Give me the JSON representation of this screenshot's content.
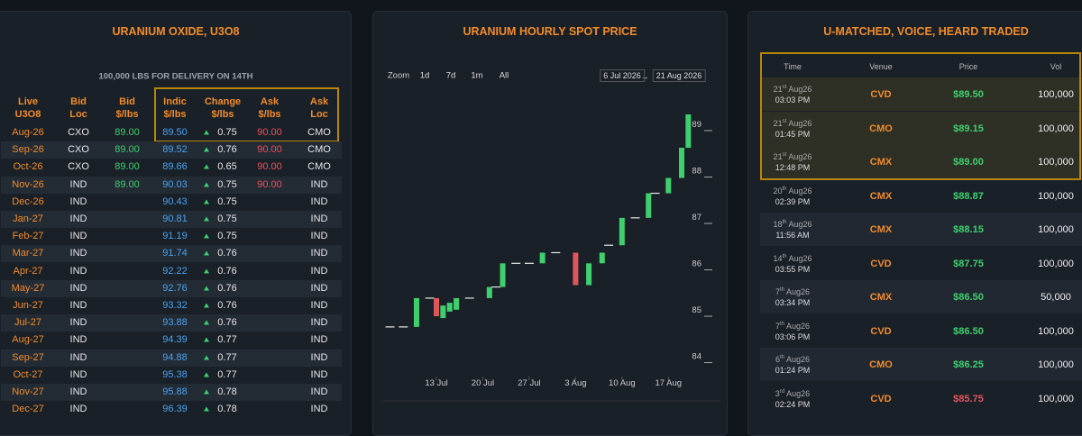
{
  "oxide": {
    "title": "URANIUM OXIDE, U3O8",
    "subtitle": "100,000 LBS FOR DELIVERY ON 14TH",
    "headers": [
      [
        "Live",
        "U3O8"
      ],
      [
        "Bid",
        "Loc"
      ],
      [
        "Bid",
        "$/lbs"
      ],
      [
        "Indic",
        "$/lbs"
      ],
      [
        "Change",
        "$/lbs"
      ],
      [
        "Ask",
        "$/lbs"
      ],
      [
        "Ask",
        "Loc"
      ]
    ],
    "rows": [
      [
        "Aug-26",
        "CXO",
        "89.00",
        "89.50",
        "0.75",
        "90.00",
        "CMO"
      ],
      [
        "Sep-26",
        "CXO",
        "89.00",
        "89.52",
        "0.76",
        "90.00",
        "CMO"
      ],
      [
        "Oct-26",
        "CXO",
        "89.00",
        "89.66",
        "0.65",
        "90.00",
        "CMO"
      ],
      [
        "Nov-26",
        "IND",
        "89.00",
        "90.03",
        "0.75",
        "90.00",
        "IND"
      ],
      [
        "Dec-26",
        "IND",
        null,
        "90.43",
        "0.75",
        null,
        "IND"
      ],
      [
        "Jan-27",
        "IND",
        null,
        "90.81",
        "0.75",
        null,
        "IND"
      ],
      [
        "Feb-27",
        "IND",
        null,
        "91.19",
        "0.75",
        null,
        "IND"
      ],
      [
        "Mar-27",
        "IND",
        null,
        "91.74",
        "0.76",
        null,
        "IND"
      ],
      [
        "Apr-27",
        "IND",
        null,
        "92.22",
        "0.76",
        null,
        "IND"
      ],
      [
        "May-27",
        "IND",
        null,
        "92.76",
        "0.76",
        null,
        "IND"
      ],
      [
        "Jun-27",
        "IND",
        null,
        "93.32",
        "0.76",
        null,
        "IND"
      ],
      [
        "Jul-27",
        "IND",
        null,
        "93.88",
        "0.76",
        null,
        "IND"
      ],
      [
        "Aug-27",
        "IND",
        null,
        "94.39",
        "0.77",
        null,
        "IND"
      ],
      [
        "Sep-27",
        "IND",
        null,
        "94.88",
        "0.77",
        null,
        "IND"
      ],
      [
        "Oct-27",
        "IND",
        null,
        "95.38",
        "0.77",
        null,
        "IND"
      ],
      [
        "Nov-27",
        "IND",
        null,
        "95.88",
        "0.78",
        null,
        "IND"
      ],
      [
        "Dec-27",
        "IND",
        null,
        "96.39",
        "0.78",
        null,
        "IND"
      ]
    ]
  },
  "range_selector": {
    "zoom": "Zoom",
    "buttons": [
      "1d",
      "7d",
      "1m",
      "All"
    ],
    "from": "6 Jul 2026",
    "arrow": "→",
    "to": "21 Aug 2026"
  },
  "chart_data": {
    "type": "candlestick",
    "title": "URANIUM HOURLY SPOT PRICE",
    "x": [
      "2026-07-06",
      "2026-07-08",
      "2026-07-10",
      "2026-07-12",
      "2026-07-13",
      "2026-07-14",
      "2026-07-15",
      "2026-07-16",
      "2026-07-18",
      "2026-07-21",
      "2026-07-22",
      "2026-07-23",
      "2026-07-25",
      "2026-07-27",
      "2026-07-29",
      "2026-07-31",
      "2026-08-03",
      "2026-08-05",
      "2026-08-07",
      "2026-08-08",
      "2026-08-10",
      "2026-08-12",
      "2026-08-14",
      "2026-08-15",
      "2026-08-17",
      "2026-08-19",
      "2026-08-20"
    ],
    "open": [
      84.77,
      84.77,
      84.77,
      85.39,
      85.39,
      84.96,
      85.1,
      85.14,
      85.39,
      85.39,
      85.63,
      85.63,
      86.14,
      86.14,
      86.14,
      86.37,
      86.37,
      85.67,
      86.14,
      86.53,
      86.53,
      87.12,
      87.12,
      87.65,
      87.65,
      87.98,
      88.63
    ],
    "close": [
      84.77,
      84.77,
      85.39,
      85.39,
      85.0,
      85.23,
      85.29,
      85.39,
      85.39,
      85.63,
      85.63,
      86.14,
      86.14,
      86.14,
      86.37,
      86.37,
      85.67,
      86.14,
      86.37,
      86.53,
      87.12,
      87.12,
      87.65,
      87.65,
      87.98,
      88.63,
      89.35
    ],
    "up_color": "#3fcf6e",
    "down_color": "#e0565b",
    "flat_color": "#e8e8e8",
    "xlim": [
      "2026-07-05",
      "2026-08-23"
    ],
    "xticks": [
      {
        "value": "2026-07-13",
        "label": "13 Jul"
      },
      {
        "value": "2026-07-20",
        "label": "20 Jul"
      },
      {
        "value": "2026-07-27",
        "label": "27 Jul"
      },
      {
        "value": "2026-08-03",
        "label": "3 Aug"
      },
      {
        "value": "2026-08-10",
        "label": "10 Aug"
      },
      {
        "value": "2026-08-17",
        "label": "17 Aug"
      }
    ],
    "ylim": [
      83.7,
      90
    ],
    "yticks": [
      84,
      85,
      86,
      87,
      88,
      89
    ]
  },
  "trades": {
    "title": "U-MATCHED, VOICE, HEARD TRADED",
    "headers": [
      "Time",
      "Venue",
      "Price",
      "Vol"
    ],
    "rows": [
      {
        "day": "21",
        "suffix": "st",
        "month": "Aug26",
        "time": "03:03 PM",
        "venue": "CVD",
        "price": "$89.50",
        "vol": "100,000",
        "color": "#3fcf6e"
      },
      {
        "day": "21",
        "suffix": "st",
        "month": "Aug26",
        "time": "01:45 PM",
        "venue": "CMO",
        "price": "$89.15",
        "vol": "100,000",
        "color": "#3fcf6e"
      },
      {
        "day": "21",
        "suffix": "st",
        "month": "Aug26",
        "time": "12:48 PM",
        "venue": "CMX",
        "price": "$89.00",
        "vol": "100,000",
        "color": "#3fcf6e"
      },
      {
        "day": "20",
        "suffix": "th",
        "month": "Aug26",
        "time": "02:39 PM",
        "venue": "CMX",
        "price": "$88.87",
        "vol": "100,000",
        "color": "#3fcf6e"
      },
      {
        "day": "18",
        "suffix": "th",
        "month": "Aug26",
        "time": "11:56 AM",
        "venue": "CMX",
        "price": "$88.15",
        "vol": "100,000",
        "color": "#3fcf6e"
      },
      {
        "day": "14",
        "suffix": "th",
        "month": "Aug26",
        "time": "03:55 PM",
        "venue": "CVD",
        "price": "$87.75",
        "vol": "100,000",
        "color": "#3fcf6e"
      },
      {
        "day": "7",
        "suffix": "th",
        "month": "Aug26",
        "time": "03:34 PM",
        "venue": "CMX",
        "price": "$86.50",
        "vol": "50,000",
        "color": "#3fcf6e"
      },
      {
        "day": "7",
        "suffix": "th",
        "month": "Aug26",
        "time": "03:06 PM",
        "venue": "CVD",
        "price": "$86.50",
        "vol": "100,000",
        "color": "#3fcf6e"
      },
      {
        "day": "6",
        "suffix": "th",
        "month": "Aug26",
        "time": "01:24 PM",
        "venue": "CMO",
        "price": "$86.25",
        "vol": "100,000",
        "color": "#3fcf6e"
      },
      {
        "day": "3",
        "suffix": "rd",
        "month": "Aug26",
        "time": "02:24 PM",
        "venue": "CVD",
        "price": "$85.75",
        "vol": "100,000",
        "color": "#e0565b"
      }
    ]
  }
}
